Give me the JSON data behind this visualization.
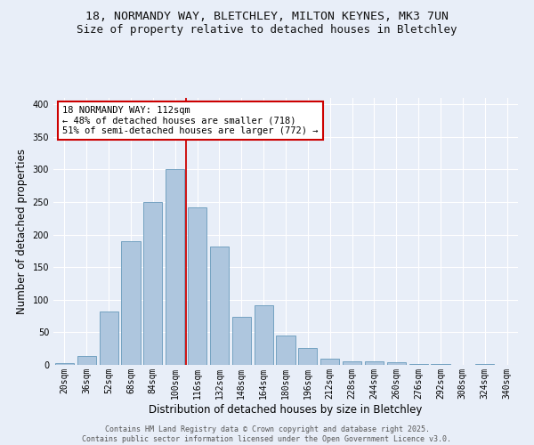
{
  "title_line1": "18, NORMANDY WAY, BLETCHLEY, MILTON KEYNES, MK3 7UN",
  "title_line2": "Size of property relative to detached houses in Bletchley",
  "xlabel": "Distribution of detached houses by size in Bletchley",
  "ylabel": "Number of detached properties",
  "footnote": "Contains HM Land Registry data © Crown copyright and database right 2025.\nContains public sector information licensed under the Open Government Licence v3.0.",
  "categories": [
    "20sqm",
    "36sqm",
    "52sqm",
    "68sqm",
    "84sqm",
    "100sqm",
    "116sqm",
    "132sqm",
    "148sqm",
    "164sqm",
    "180sqm",
    "196sqm",
    "212sqm",
    "228sqm",
    "244sqm",
    "260sqm",
    "276sqm",
    "292sqm",
    "308sqm",
    "324sqm",
    "340sqm"
  ],
  "values": [
    3,
    14,
    82,
    190,
    250,
    300,
    242,
    182,
    74,
    91,
    45,
    26,
    10,
    6,
    5,
    4,
    2,
    1,
    0,
    1,
    0
  ],
  "bar_color": "#aec6de",
  "bar_edge_color": "#6699bb",
  "marker_label": "18 NORMANDY WAY: 112sqm",
  "marker_pct_smaller": "48% of detached houses are smaller (718)",
  "marker_pct_larger": "51% of semi-detached houses are larger (772)",
  "vline_color": "#cc0000",
  "annotation_box_edge": "#cc0000",
  "ylim": [
    0,
    410
  ],
  "yticks": [
    0,
    50,
    100,
    150,
    200,
    250,
    300,
    350,
    400
  ],
  "background_color": "#e8eef8",
  "grid_color": "#ffffff",
  "title_fontsize": 9.5,
  "subtitle_fontsize": 9,
  "axis_label_fontsize": 8.5,
  "tick_fontsize": 7,
  "annotation_fontsize": 7.5,
  "footnote_fontsize": 6
}
